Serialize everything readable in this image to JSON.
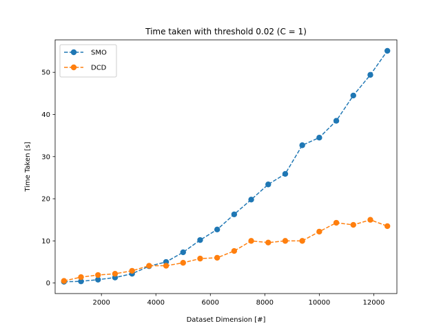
{
  "chart_data": {
    "type": "line",
    "title": "Time taken with threshold 0.02 (C = 1)",
    "xlabel": "Dataset Dimension [#]",
    "ylabel": "Time Taken [s]",
    "xlim": [
      300,
      12850
    ],
    "ylim": [
      -2.5,
      57.7
    ],
    "xticks": [
      2000,
      4000,
      6000,
      8000,
      10000,
      12000
    ],
    "yticks": [
      0,
      10,
      20,
      30,
      40,
      50
    ],
    "grid": false,
    "legend_position": "upper-left",
    "x": [
      625,
      1250,
      1875,
      2500,
      3125,
      3750,
      4375,
      5000,
      5625,
      6250,
      6875,
      7500,
      8125,
      8750,
      9375,
      10000,
      10625,
      11250,
      11875,
      12500
    ],
    "series": [
      {
        "name": "SMO",
        "color": "#1f77b4",
        "values": [
          0.3,
          0.4,
          0.8,
          1.3,
          2.2,
          4.0,
          5.0,
          7.3,
          10.2,
          12.7,
          16.3,
          19.8,
          23.4,
          25.9,
          32.7,
          34.5,
          38.5,
          44.5,
          49.4,
          55.1
        ]
      },
      {
        "name": "DCD",
        "color": "#ff7f0e",
        "values": [
          0.5,
          1.4,
          1.9,
          2.2,
          2.9,
          4.1,
          4.1,
          4.8,
          5.8,
          6.0,
          7.6,
          10.0,
          9.6,
          10.0,
          10.0,
          12.2,
          14.3,
          13.8,
          15.0,
          13.5
        ]
      }
    ]
  }
}
